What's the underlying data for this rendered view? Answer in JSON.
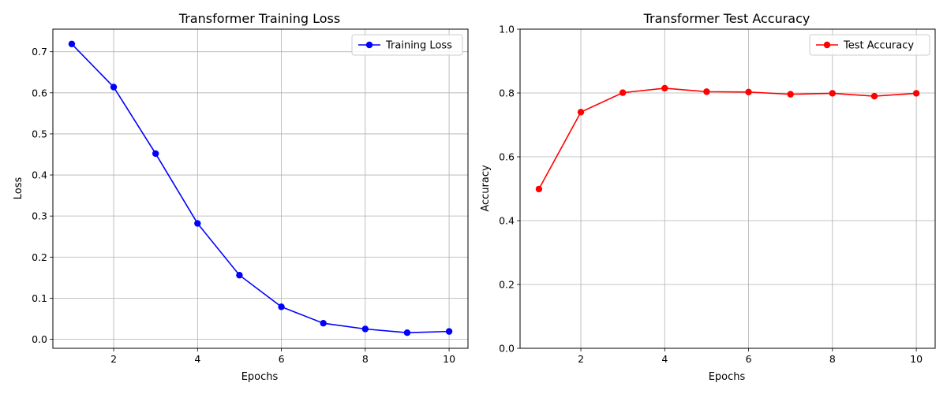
{
  "chart_data": [
    {
      "type": "line",
      "title": "Transformer Training Loss",
      "xlabel": "Epochs",
      "ylabel": "Loss",
      "x": [
        1,
        2,
        3,
        4,
        5,
        6,
        7,
        8,
        9,
        10
      ],
      "series": [
        {
          "name": "Training Loss",
          "color": "#0000ff",
          "values": [
            0.719,
            0.614,
            0.452,
            0.282,
            0.156,
            0.079,
            0.039,
            0.025,
            0.016,
            0.019
          ]
        }
      ],
      "xlim": [
        0.55,
        10.45
      ],
      "ylim": [
        -0.022,
        0.755
      ],
      "xticks": [
        2,
        4,
        6,
        8,
        10
      ],
      "yticks": [
        0.0,
        0.1,
        0.2,
        0.3,
        0.4,
        0.5,
        0.6,
        0.7
      ],
      "ytick_labels": [
        "0.0",
        "0.1",
        "0.2",
        "0.3",
        "0.4",
        "0.5",
        "0.6",
        "0.7"
      ],
      "grid": true,
      "legend": "upper-right"
    },
    {
      "type": "line",
      "title": "Transformer Test Accuracy",
      "xlabel": "Epochs",
      "ylabel": "Accuracy",
      "x": [
        1,
        2,
        3,
        4,
        5,
        6,
        7,
        8,
        9,
        10
      ],
      "series": [
        {
          "name": "Test Accuracy",
          "color": "#ff0000",
          "values": [
            0.499,
            0.74,
            0.801,
            0.815,
            0.804,
            0.803,
            0.796,
            0.799,
            0.79,
            0.799
          ]
        }
      ],
      "xlim": [
        0.55,
        10.45
      ],
      "ylim": [
        0.0,
        1.0
      ],
      "xticks": [
        2,
        4,
        6,
        8,
        10
      ],
      "yticks": [
        0.0,
        0.2,
        0.4,
        0.6,
        0.8,
        1.0
      ],
      "ytick_labels": [
        "0.0",
        "0.2",
        "0.4",
        "0.6",
        "0.8",
        "1.0"
      ],
      "grid": true,
      "legend": "upper-right"
    }
  ]
}
